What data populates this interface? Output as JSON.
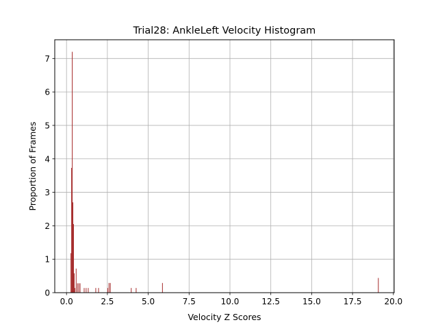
{
  "chart_data": {
    "type": "bar",
    "title": "Trial28: AnkleLeft Velocity Histogram",
    "xlabel": "Velocity Z Scores",
    "ylabel": "Proportion of Frames",
    "xlim": [
      -0.72,
      20.05
    ],
    "ylim": [
      0,
      7.56
    ],
    "xticks": [
      0.0,
      2.5,
      5.0,
      7.5,
      10.0,
      12.5,
      15.0,
      17.5,
      20.0
    ],
    "xtick_labels": [
      "0.0",
      "2.5",
      "5.0",
      "7.5",
      "10.0",
      "12.5",
      "15.0",
      "17.5",
      "20.0"
    ],
    "yticks": [
      0,
      1,
      2,
      3,
      4,
      5,
      6,
      7
    ],
    "ytick_labels": [
      "0",
      "1",
      "2",
      "3",
      "4",
      "5",
      "6",
      "7"
    ],
    "grid": true,
    "bar_color": "#a52a2a",
    "bar_width": 0.04,
    "bins": [
      {
        "x": 0.27,
        "y": 1.18
      },
      {
        "x": 0.31,
        "y": 3.73
      },
      {
        "x": 0.35,
        "y": 7.2
      },
      {
        "x": 0.39,
        "y": 2.7
      },
      {
        "x": 0.43,
        "y": 2.05
      },
      {
        "x": 0.47,
        "y": 0.58
      },
      {
        "x": 0.51,
        "y": 0.14
      },
      {
        "x": 0.59,
        "y": 0.72
      },
      {
        "x": 0.67,
        "y": 0.28
      },
      {
        "x": 0.75,
        "y": 0.28
      },
      {
        "x": 0.83,
        "y": 0.28
      },
      {
        "x": 1.08,
        "y": 0.14
      },
      {
        "x": 1.2,
        "y": 0.14
      },
      {
        "x": 1.33,
        "y": 0.14
      },
      {
        "x": 1.79,
        "y": 0.14
      },
      {
        "x": 1.96,
        "y": 0.14
      },
      {
        "x": 2.52,
        "y": 0.14
      },
      {
        "x": 2.6,
        "y": 0.29
      },
      {
        "x": 2.68,
        "y": 0.29
      },
      {
        "x": 3.96,
        "y": 0.14
      },
      {
        "x": 4.26,
        "y": 0.14
      },
      {
        "x": 5.87,
        "y": 0.29
      },
      {
        "x": 19.08,
        "y": 0.44
      }
    ]
  }
}
